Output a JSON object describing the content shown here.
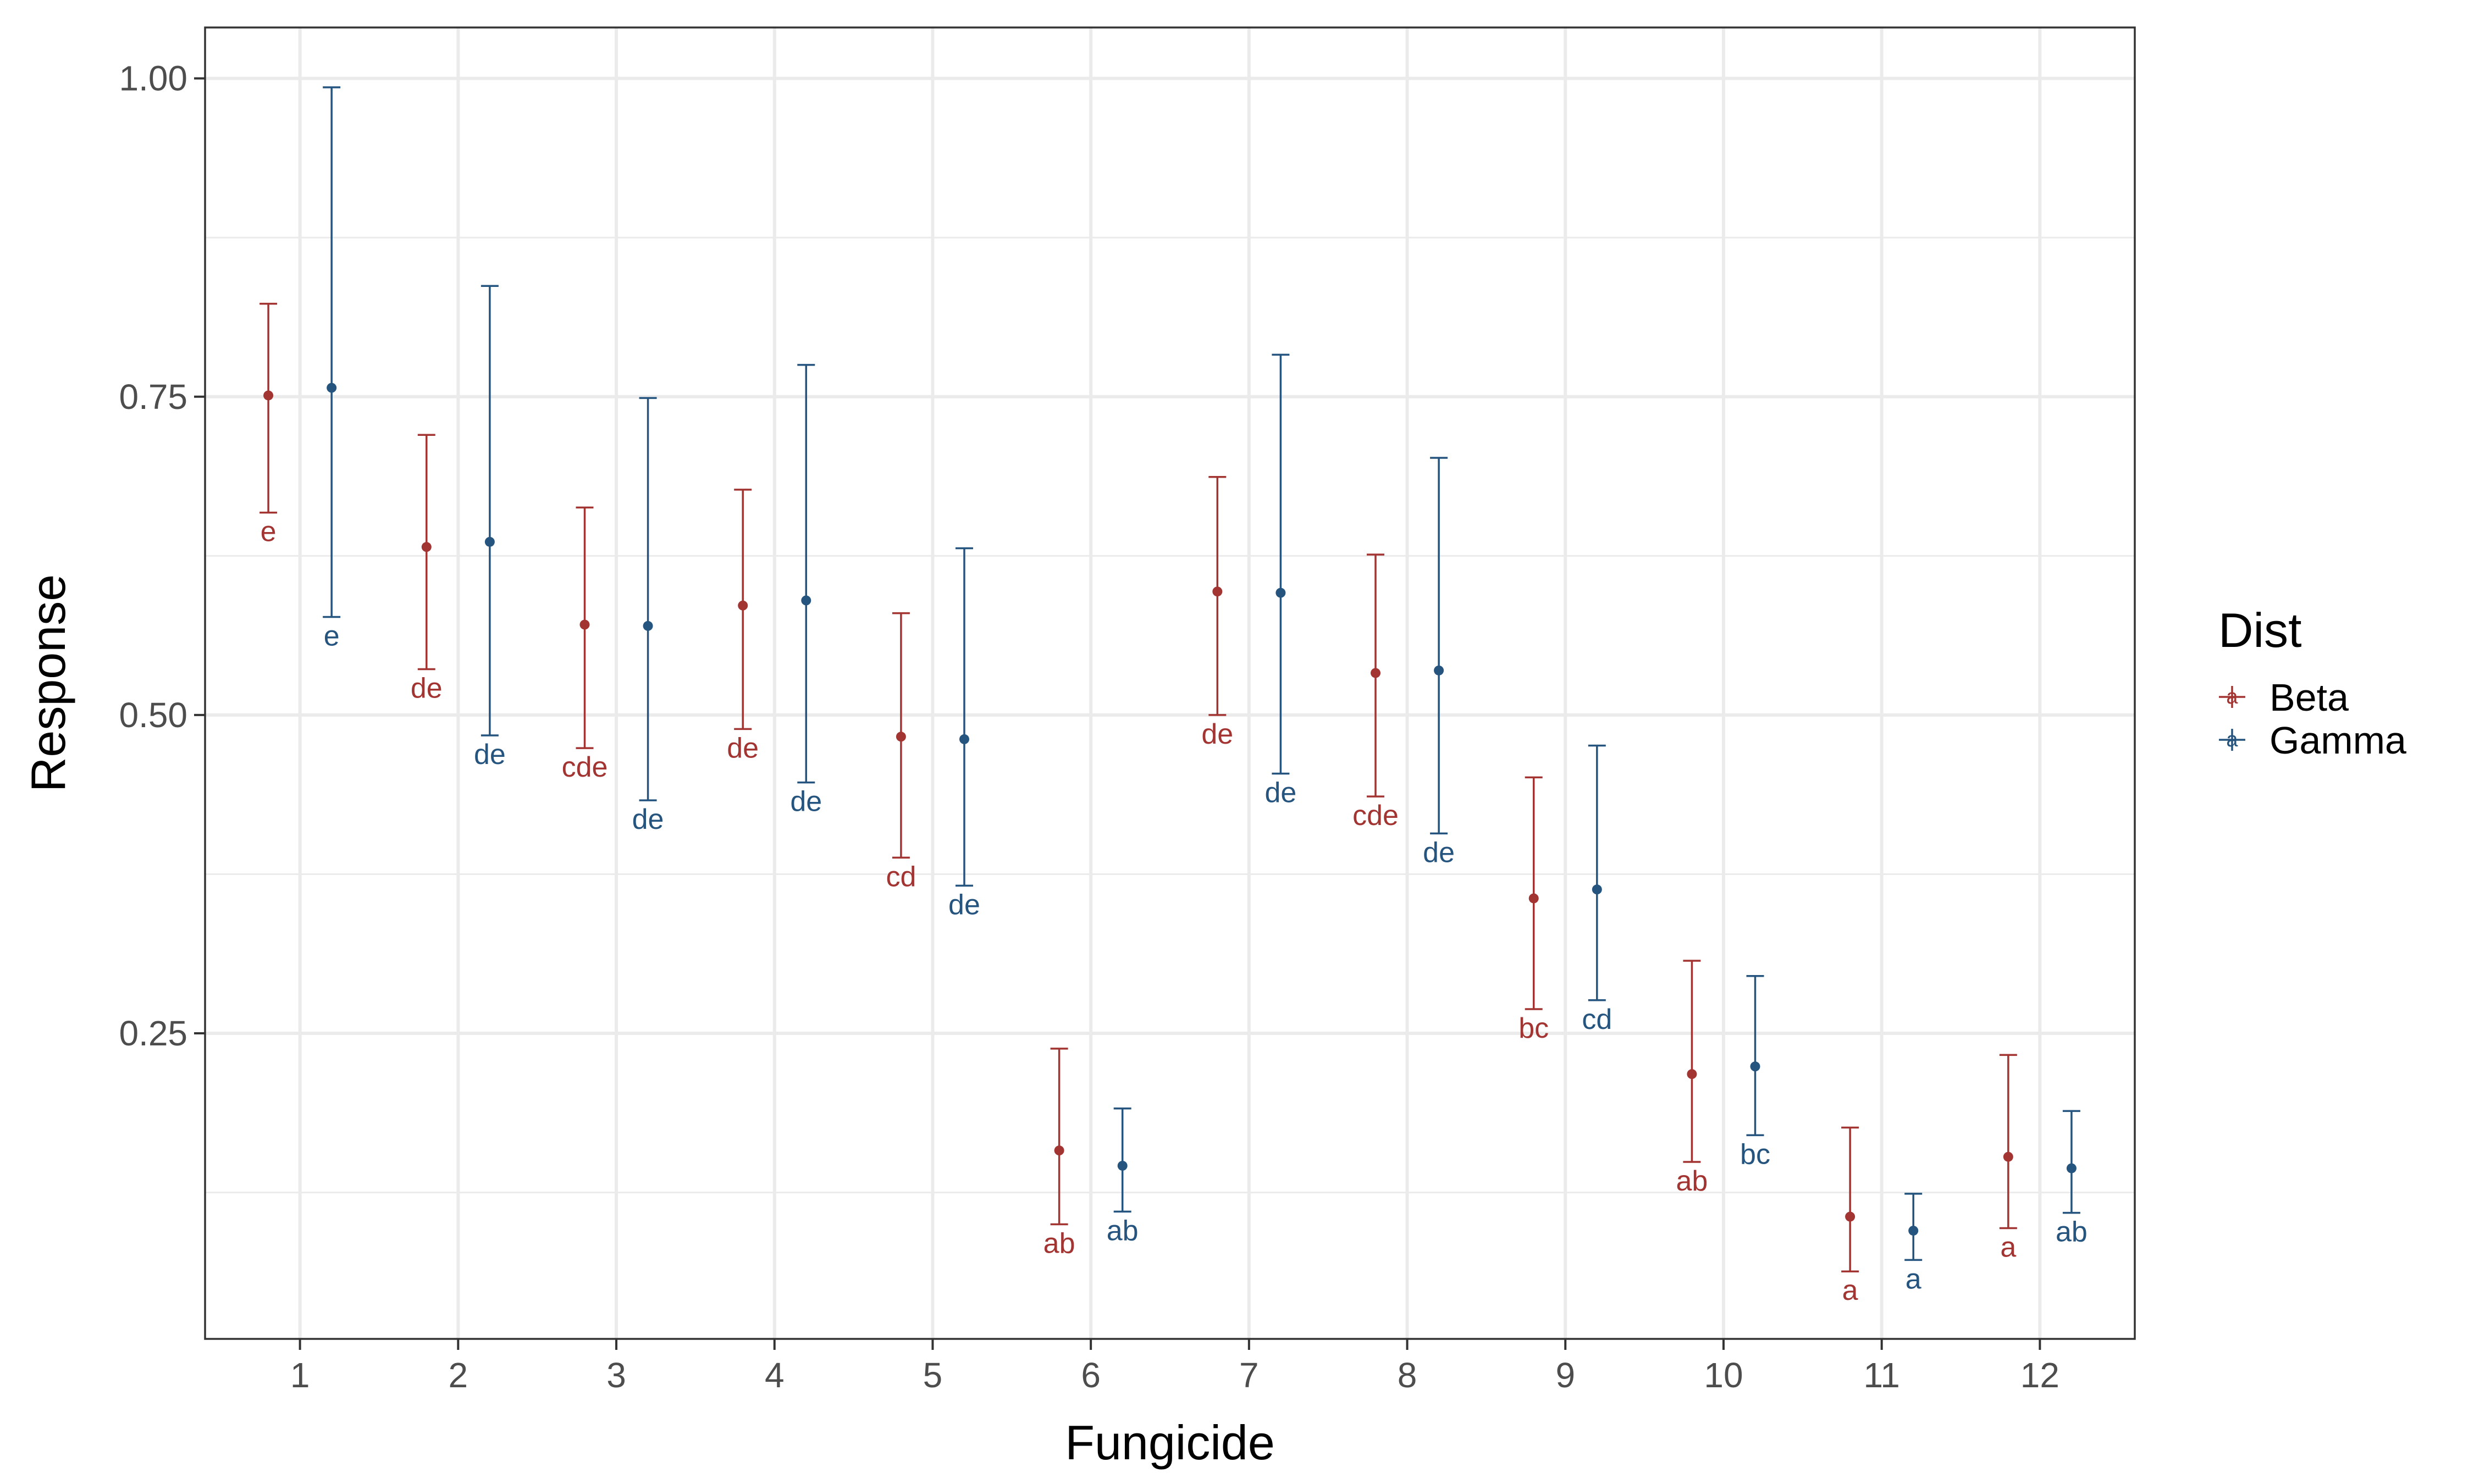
{
  "chart_data": {
    "type": "scatter",
    "subtype": "point-with-error-bars",
    "xlabel": "Fungicide",
    "ylabel": "Response",
    "categories": [
      "1",
      "2",
      "3",
      "4",
      "5",
      "6",
      "7",
      "8",
      "9",
      "10",
      "11",
      "12"
    ],
    "ylim": [
      0.01,
      1.04
    ],
    "yticks": [
      "0.25",
      "0.50",
      "0.75",
      "1.00"
    ],
    "grid": true,
    "legend": {
      "title": "Dist",
      "position": "right",
      "entries": [
        {
          "name": "Beta",
          "color": "#A23432",
          "glyph": "a"
        },
        {
          "name": "Gamma",
          "color": "#25547F",
          "glyph": "a"
        }
      ]
    },
    "series": [
      {
        "name": "Beta",
        "color": "#A23432",
        "offset": -0.2,
        "values": [
          0.751,
          0.632,
          0.571,
          0.586,
          0.483,
          0.158,
          0.597,
          0.533,
          0.356,
          0.218,
          0.106,
          0.153
        ],
        "lower": [
          0.659,
          0.536,
          0.474,
          0.489,
          0.388,
          0.1,
          0.5,
          0.436,
          0.269,
          0.149,
          0.063,
          0.097
        ],
        "upper": [
          0.823,
          0.72,
          0.663,
          0.677,
          0.58,
          0.238,
          0.687,
          0.626,
          0.451,
          0.307,
          0.176,
          0.233
        ],
        "letters": [
          "e",
          "de",
          "cde",
          "de",
          "cd",
          "ab",
          "de",
          "cde",
          "bc",
          "ab",
          "a",
          "a"
        ]
      },
      {
        "name": "Gamma",
        "color": "#25547F",
        "offset": 0.2,
        "values": [
          0.757,
          0.636,
          0.57,
          0.59,
          0.481,
          0.146,
          0.596,
          0.535,
          0.363,
          0.224,
          0.095,
          0.144
        ],
        "lower": [
          0.577,
          0.484,
          0.433,
          0.447,
          0.366,
          0.11,
          0.454,
          0.407,
          0.276,
          0.17,
          0.072,
          0.109
        ],
        "upper": [
          0.993,
          0.837,
          0.749,
          0.775,
          0.631,
          0.191,
          0.783,
          0.702,
          0.476,
          0.295,
          0.124,
          0.189
        ],
        "letters": [
          "e",
          "de",
          "de",
          "de",
          "de",
          "ab",
          "de",
          "de",
          "cd",
          "bc",
          "a",
          "ab"
        ]
      }
    ]
  }
}
